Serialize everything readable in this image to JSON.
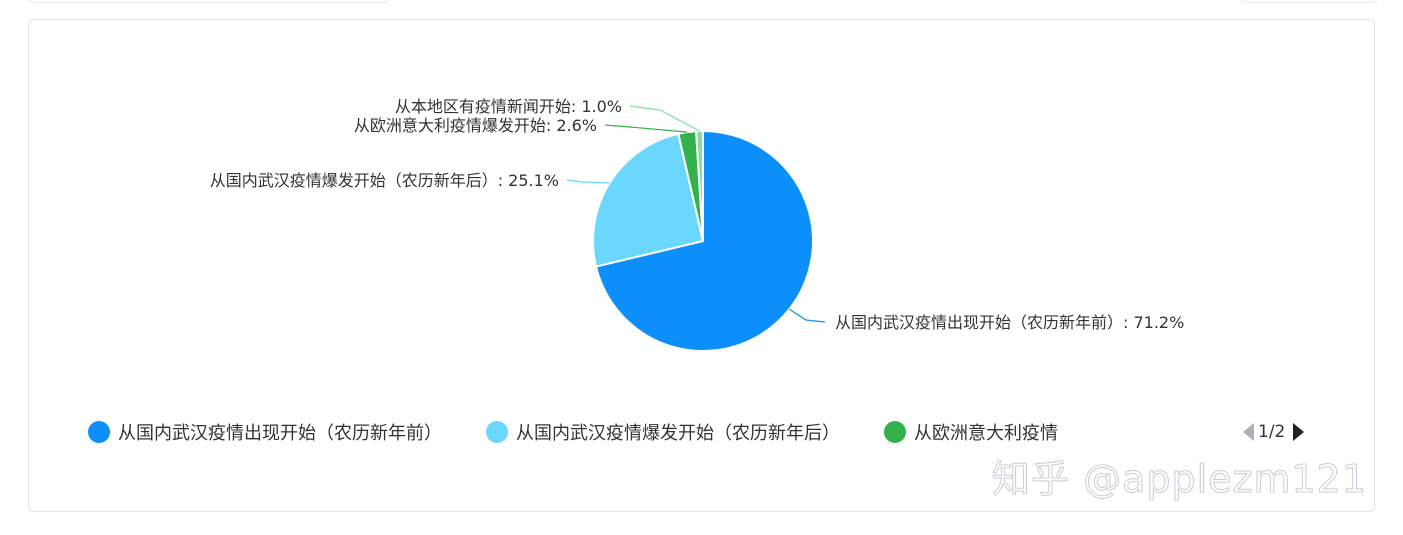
{
  "chart_data": {
    "type": "pie",
    "slices": [
      {
        "label": "从国内武汉疫情出现开始（农历新年前）",
        "value": 71.2,
        "color": "#0c8ffb",
        "display": "从国内武汉疫情出现开始（农历新年前）: 71.2%"
      },
      {
        "label": "从国内武汉疫情爆发开始（农历新年后）",
        "value": 25.1,
        "color": "#6bd7fc",
        "display": "从国内武汉疫情爆发开始（农历新年后）: 25.1%"
      },
      {
        "label": "从欧洲意大利疫情爆发开始",
        "value": 2.6,
        "color": "#33b24c",
        "display": "从欧洲意大利疫情爆发开始: 2.6%"
      },
      {
        "label": "从本地区有疫情新闻开始",
        "value": 1.0,
        "color": "#7fe0a0",
        "display": "从本地区有疫情新闻开始: 1.0%"
      }
    ]
  },
  "legend": {
    "items": [
      {
        "label": "从国内武汉疫情出现开始（农历新年前）",
        "color": "#0c8ffb"
      },
      {
        "label": "从国内武汉疫情爆发开始（农历新年后）",
        "color": "#6bd7fc"
      },
      {
        "label": "从欧洲意大利疫情",
        "color": "#33b24c"
      }
    ],
    "page": "1/2"
  },
  "watermark": "知乎 @applezm121"
}
